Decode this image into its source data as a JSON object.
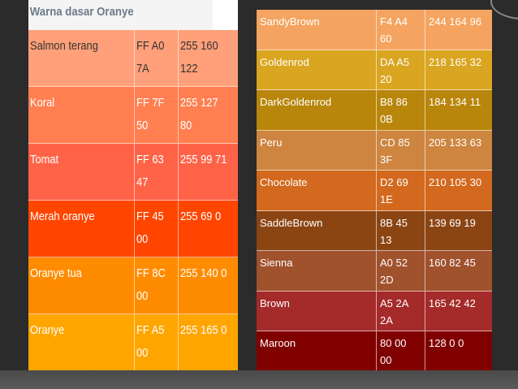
{
  "left_table": {
    "heading": "Warna dasar Oranye",
    "rows": [
      {
        "name": "Salmon terang",
        "hex": "FF A0\n7A",
        "rgb": "255 160\n122",
        "color": "#FFA07A",
        "text": "#333333"
      },
      {
        "name": "Koral",
        "hex": "FF 7F\n50",
        "rgb": "255 127 80",
        "color": "#FF7F50",
        "text": "#ffffff"
      },
      {
        "name": "Tomat",
        "hex": "FF 63\n47",
        "rgb": "255 99 71",
        "color": "#FF6347",
        "text": "#ffffff"
      },
      {
        "name": "Merah oranye",
        "hex": "FF 45\n00",
        "rgb": "255 69 0",
        "color": "#FF4500",
        "text": "#ffffff"
      },
      {
        "name": "Oranye tua",
        "hex": "FF 8C\n00",
        "rgb": "255 140 0",
        "color": "#FF8C00",
        "text": "#ffffff"
      },
      {
        "name": "Oranye",
        "hex": "FF A5\n00",
        "rgb": "255 165 0",
        "color": "#FFA500",
        "text": "#ffffff"
      }
    ]
  },
  "right_table": {
    "rows": [
      {
        "name": "SandyBrown",
        "hex": "F4 A4\n60",
        "rgb": "244 164 96",
        "color": "#F4A460"
      },
      {
        "name": "Goldenrod",
        "hex": "DA A5\n20",
        "rgb": "218 165 32",
        "color": "#DAA520"
      },
      {
        "name": "DarkGoldenrod",
        "hex": "B8 86\n0B",
        "rgb": "184 134 11",
        "color": "#B8860B"
      },
      {
        "name": "Peru",
        "hex": "CD 85\n3F",
        "rgb": "205 133 63",
        "color": "#CD853F"
      },
      {
        "name": "Chocolate",
        "hex": "D2 69\n1E",
        "rgb": "210 105 30",
        "color": "#D2691E"
      },
      {
        "name": "SaddleBrown",
        "hex": "8B 45\n13",
        "rgb": "139 69 19",
        "color": "#8B4513"
      },
      {
        "name": "Sienna",
        "hex": "A0 52\n2D",
        "rgb": "160 82 45",
        "color": "#A0522D"
      },
      {
        "name": "Brown",
        "hex": "A5 2A\n2A",
        "rgb": "165 42 42",
        "color": "#A52A2A"
      },
      {
        "name": "Maroon",
        "hex": "80 00\n00",
        "rgb": "128 0 0",
        "color": "#800000"
      }
    ]
  }
}
